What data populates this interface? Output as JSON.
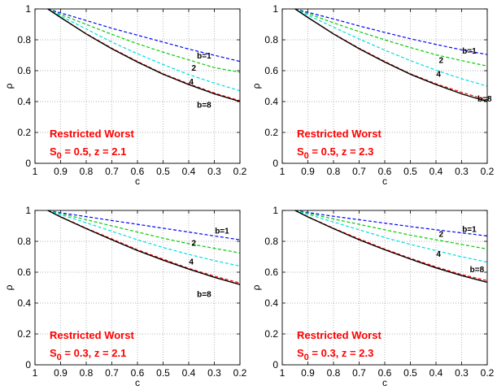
{
  "chart_data": [
    {
      "type": "line",
      "xlabel": "c",
      "ylabel": "ρ",
      "xlim": [
        1,
        0.2
      ],
      "ylim": [
        0,
        1
      ],
      "x_reversed": true,
      "grid": true,
      "xticks": [
        "1",
        "0.9",
        "0.8",
        "0.7",
        "0.6",
        "0.5",
        "0.4",
        "0.3",
        "0.2"
      ],
      "yticks": [
        "0",
        "0.2",
        "0.4",
        "0.6",
        "0.8",
        "1"
      ],
      "annotation_title": "Restricted Worst",
      "annotation_sub_pre": "S",
      "annotation_sub_index": "0",
      "annotation_sub_post": " = 0.5, z = 2.1",
      "x": [
        0.95,
        0.9,
        0.8,
        0.7,
        0.6,
        0.5,
        0.4,
        0.3,
        0.2
      ],
      "series": [
        {
          "name": "b=1",
          "color": "#0000ff",
          "dash": true,
          "values": [
            1.0,
            0.975,
            0.925,
            0.875,
            0.83,
            0.785,
            0.74,
            0.7,
            0.66
          ]
        },
        {
          "name": "2",
          "color": "#00cc00",
          "dash": true,
          "values": [
            1.0,
            0.965,
            0.9,
            0.835,
            0.775,
            0.72,
            0.67,
            0.62,
            0.59
          ]
        },
        {
          "name": "4",
          "color": "#00dddd",
          "dash": true,
          "values": [
            1.0,
            0.955,
            0.87,
            0.785,
            0.71,
            0.64,
            0.575,
            0.52,
            0.47
          ]
        },
        {
          "name": "b=8",
          "color": "#ff0000",
          "dash": true,
          "values": [
            1.0,
            0.945,
            0.84,
            0.745,
            0.66,
            0.58,
            0.515,
            0.455,
            0.405
          ]
        },
        {
          "name": "",
          "color": "#000000",
          "dash": false,
          "values": [
            1.0,
            0.945,
            0.838,
            0.742,
            0.656,
            0.577,
            0.51,
            0.45,
            0.4
          ]
        }
      ],
      "curve_labels": [
        {
          "text": "b=1",
          "x": 0.34,
          "y": 0.68
        },
        {
          "text": "2",
          "x": 0.38,
          "y": 0.6
        },
        {
          "text": "4",
          "x": 0.39,
          "y": 0.51
        },
        {
          "text": "b=8",
          "x": 0.34,
          "y": 0.36
        }
      ]
    },
    {
      "type": "line",
      "xlabel": "c",
      "ylabel": "ρ",
      "xlim": [
        1,
        0.2
      ],
      "ylim": [
        0,
        1
      ],
      "x_reversed": true,
      "grid": true,
      "xticks": [
        "1",
        "0.9",
        "0.8",
        "0.7",
        "0.6",
        "0.5",
        "0.4",
        "0.3",
        "0.2"
      ],
      "yticks": [
        "0",
        "0.2",
        "0.4",
        "0.6",
        "0.8",
        "1"
      ],
      "annotation_title": "Restricted Worst",
      "annotation_sub_pre": "S",
      "annotation_sub_index": "0",
      "annotation_sub_post": " = 0.5, z = 2.3",
      "x": [
        0.95,
        0.9,
        0.8,
        0.7,
        0.6,
        0.5,
        0.4,
        0.3,
        0.2
      ],
      "series": [
        {
          "name": "b=1",
          "color": "#0000ff",
          "dash": true,
          "values": [
            1.0,
            0.978,
            0.935,
            0.89,
            0.848,
            0.807,
            0.77,
            0.735,
            0.705
          ]
        },
        {
          "name": "2",
          "color": "#00cc00",
          "dash": true,
          "values": [
            1.0,
            0.97,
            0.91,
            0.853,
            0.8,
            0.75,
            0.703,
            0.665,
            0.63
          ]
        },
        {
          "name": "4",
          "color": "#00dddd",
          "dash": true,
          "values": [
            1.0,
            0.96,
            0.882,
            0.805,
            0.733,
            0.665,
            0.603,
            0.548,
            0.5
          ]
        },
        {
          "name": "b=8",
          "color": "#ff0000",
          "dash": true,
          "values": [
            1.0,
            0.945,
            0.84,
            0.745,
            0.66,
            0.58,
            0.515,
            0.46,
            0.41
          ]
        },
        {
          "name": "",
          "color": "#000000",
          "dash": false,
          "values": [
            1.0,
            0.945,
            0.838,
            0.742,
            0.656,
            0.577,
            0.51,
            0.45,
            0.4
          ]
        }
      ],
      "curve_labels": [
        {
          "text": "b=1",
          "x": 0.27,
          "y": 0.71
        },
        {
          "text": "2",
          "x": 0.38,
          "y": 0.65
        },
        {
          "text": "4",
          "x": 0.39,
          "y": 0.56
        },
        {
          "text": "b=8",
          "x": 0.21,
          "y": 0.4
        }
      ]
    },
    {
      "type": "line",
      "xlabel": "c",
      "ylabel": "ρ",
      "xlim": [
        1,
        0.2
      ],
      "ylim": [
        0,
        1
      ],
      "x_reversed": true,
      "grid": true,
      "xticks": [
        "1",
        "0.9",
        "0.8",
        "0.7",
        "0.6",
        "0.5",
        "0.4",
        "0.3",
        "0.2"
      ],
      "yticks": [
        "0",
        "0.2",
        "0.4",
        "0.6",
        "0.8",
        "1"
      ],
      "annotation_title": "Restricted Worst",
      "annotation_sub_pre": "S",
      "annotation_sub_index": "0",
      "annotation_sub_post": " = 0.3, z = 2.1",
      "x": [
        0.95,
        0.9,
        0.8,
        0.7,
        0.6,
        0.5,
        0.4,
        0.3,
        0.2
      ],
      "series": [
        {
          "name": "b=1",
          "color": "#0000ff",
          "dash": true,
          "values": [
            1.0,
            0.985,
            0.96,
            0.935,
            0.91,
            0.885,
            0.86,
            0.835,
            0.81
          ]
        },
        {
          "name": "2",
          "color": "#00cc00",
          "dash": true,
          "values": [
            1.0,
            0.98,
            0.94,
            0.9,
            0.86,
            0.82,
            0.785,
            0.755,
            0.725
          ]
        },
        {
          "name": "4",
          "color": "#00dddd",
          "dash": true,
          "values": [
            1.0,
            0.973,
            0.92,
            0.865,
            0.81,
            0.76,
            0.715,
            0.675,
            0.64
          ]
        },
        {
          "name": "b=8",
          "color": "#ff0000",
          "dash": true,
          "values": [
            1.0,
            0.96,
            0.885,
            0.815,
            0.745,
            0.685,
            0.625,
            0.575,
            0.53
          ]
        },
        {
          "name": "",
          "color": "#000000",
          "dash": false,
          "values": [
            1.0,
            0.958,
            0.882,
            0.81,
            0.74,
            0.678,
            0.62,
            0.567,
            0.52
          ]
        }
      ],
      "curve_labels": [
        {
          "text": "b=1",
          "x": 0.27,
          "y": 0.85
        },
        {
          "text": "2",
          "x": 0.38,
          "y": 0.77
        },
        {
          "text": "4",
          "x": 0.39,
          "y": 0.65
        },
        {
          "text": "b=8",
          "x": 0.34,
          "y": 0.44
        }
      ]
    },
    {
      "type": "line",
      "xlabel": "c",
      "ylabel": "ρ",
      "xlim": [
        1,
        0.2
      ],
      "ylim": [
        0,
        1
      ],
      "x_reversed": true,
      "grid": true,
      "xticks": [
        "1",
        "0.9",
        "0.8",
        "0.7",
        "0.6",
        "0.5",
        "0.4",
        "0.3",
        "0.2"
      ],
      "yticks": [
        "0",
        "0.2",
        "0.4",
        "0.6",
        "0.8",
        "1"
      ],
      "annotation_title": "Restricted Worst",
      "annotation_sub_pre": "S",
      "annotation_sub_index": "0",
      "annotation_sub_post": " = 0.3, z = 2.3",
      "x": [
        0.95,
        0.9,
        0.8,
        0.7,
        0.6,
        0.5,
        0.4,
        0.3,
        0.2
      ],
      "series": [
        {
          "name": "b=1",
          "color": "#0000ff",
          "dash": true,
          "values": [
            1.0,
            0.987,
            0.962,
            0.94,
            0.918,
            0.896,
            0.875,
            0.855,
            0.835
          ]
        },
        {
          "name": "2",
          "color": "#00cc00",
          "dash": true,
          "values": [
            1.0,
            0.982,
            0.945,
            0.91,
            0.875,
            0.84,
            0.81,
            0.78,
            0.75
          ]
        },
        {
          "name": "4",
          "color": "#00dddd",
          "dash": true,
          "values": [
            1.0,
            0.975,
            0.925,
            0.875,
            0.825,
            0.78,
            0.74,
            0.7,
            0.665
          ]
        },
        {
          "name": "b=8",
          "color": "#ff0000",
          "dash": true,
          "values": [
            1.0,
            0.96,
            0.885,
            0.815,
            0.75,
            0.69,
            0.635,
            0.585,
            0.545
          ]
        },
        {
          "name": "",
          "color": "#000000",
          "dash": false,
          "values": [
            1.0,
            0.958,
            0.882,
            0.81,
            0.745,
            0.685,
            0.628,
            0.578,
            0.535
          ]
        }
      ],
      "curve_labels": [
        {
          "text": "b=1",
          "x": 0.27,
          "y": 0.86
        },
        {
          "text": "2",
          "x": 0.38,
          "y": 0.83
        },
        {
          "text": "4",
          "x": 0.39,
          "y": 0.7
        },
        {
          "text": "b=8",
          "x": 0.24,
          "y": 0.6
        }
      ]
    }
  ]
}
